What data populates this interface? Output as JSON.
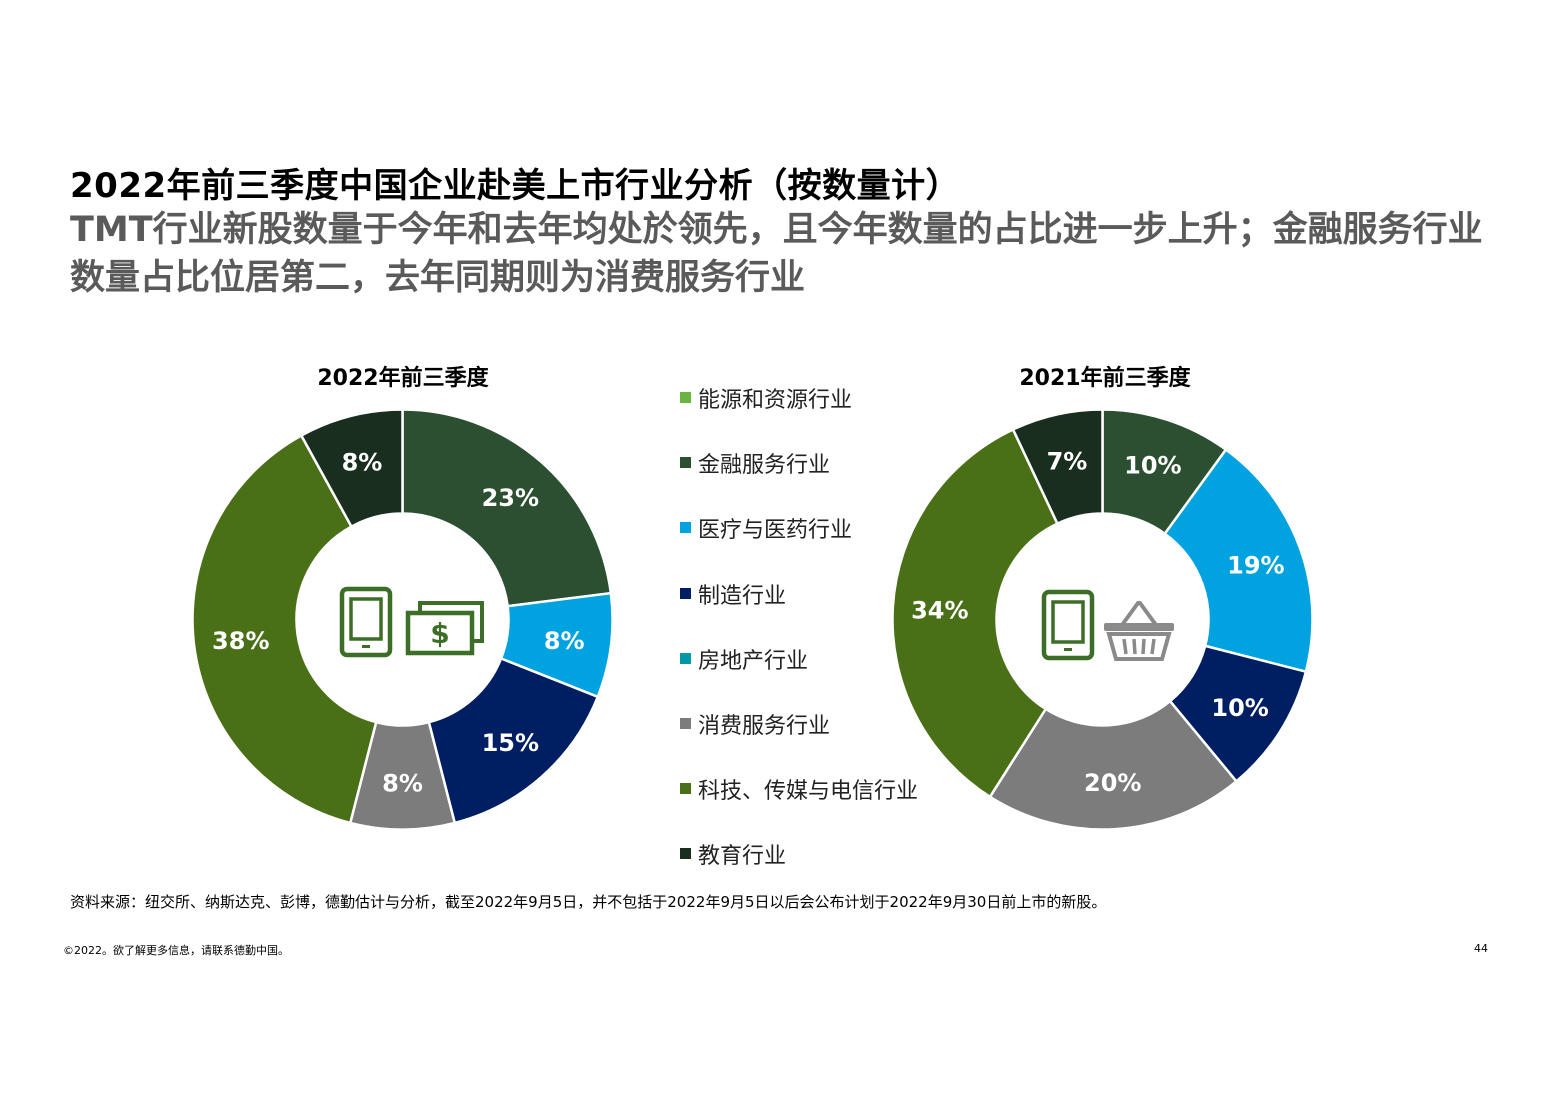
{
  "header": {
    "title": "2022年前三季度中国企业赴美上市行业分析（按数量计）",
    "subtitle": "TMT行业新股数量于今年和去年均处於领先，且今年数量的占比进一步上升；金融服务行业数量占比位居第二，去年同期则为消费服务行业"
  },
  "legend": [
    {
      "label": "能源和资源行业",
      "color": "#6db33f"
    },
    {
      "label": "金融服务行业",
      "color": "#2b4f30"
    },
    {
      "label": "医疗与医药行业",
      "color": "#00a3e0"
    },
    {
      "label": "制造行业",
      "color": "#001e62"
    },
    {
      "label": "房地产行业",
      "color": "#0097a9"
    },
    {
      "label": "消费服务行业",
      "color": "#7c7c7c"
    },
    {
      "label": "科技、传媒与电信行业",
      "color": "#4a7017"
    },
    {
      "label": "教育行业",
      "color": "#1a2e1f"
    }
  ],
  "chart_data": [
    {
      "type": "pie",
      "title": "2022年前三季度",
      "slices": [
        {
          "category": "金融服务行业",
          "value": 23,
          "label": "23%",
          "color": "#2b4f30"
        },
        {
          "category": "医疗与医药行业",
          "value": 8,
          "label": "8%",
          "color": "#00a3e0"
        },
        {
          "category": "制造行业",
          "value": 15,
          "label": "15%",
          "color": "#001e62"
        },
        {
          "category": "消费服务行业",
          "value": 8,
          "label": "8%",
          "color": "#7c7c7c"
        },
        {
          "category": "科技、传媒与电信行业",
          "value": 38,
          "label": "38%",
          "color": "#4a7017"
        },
        {
          "category": "教育行业",
          "value": 8,
          "label": "8%",
          "color": "#1a2e1f"
        }
      ],
      "center_icons": [
        "tablet-icon",
        "cash-icon"
      ]
    },
    {
      "type": "pie",
      "title": "2021年前三季度",
      "slices": [
        {
          "category": "金融服务行业",
          "value": 10,
          "label": "10%",
          "color": "#2b4f30"
        },
        {
          "category": "医疗与医药行业",
          "value": 19,
          "label": "19%",
          "color": "#00a3e0"
        },
        {
          "category": "制造行业",
          "value": 10,
          "label": "10%",
          "color": "#001e62"
        },
        {
          "category": "消费服务行业",
          "value": 20,
          "label": "20%",
          "color": "#7c7c7c"
        },
        {
          "category": "科技、传媒与电信行业",
          "value": 34,
          "label": "34%",
          "color": "#4a7017"
        },
        {
          "category": "教育行业",
          "value": 7,
          "label": "7%",
          "color": "#1a2e1f"
        }
      ],
      "center_icons": [
        "tablet-icon",
        "shopping-basket-icon"
      ]
    }
  ],
  "icon_color": "#3d6e27",
  "source_note": "资料来源：纽交所、纳斯达克、彭博，德勤估计与分析，截至2022年9月5日，并不包括于2022年9月5日以后会公布计划于2022年9月30日前上市的新股。",
  "footer": {
    "copyright": "©2022。欲了解更多信息，请联系德勤中国。",
    "page_number": "44"
  }
}
